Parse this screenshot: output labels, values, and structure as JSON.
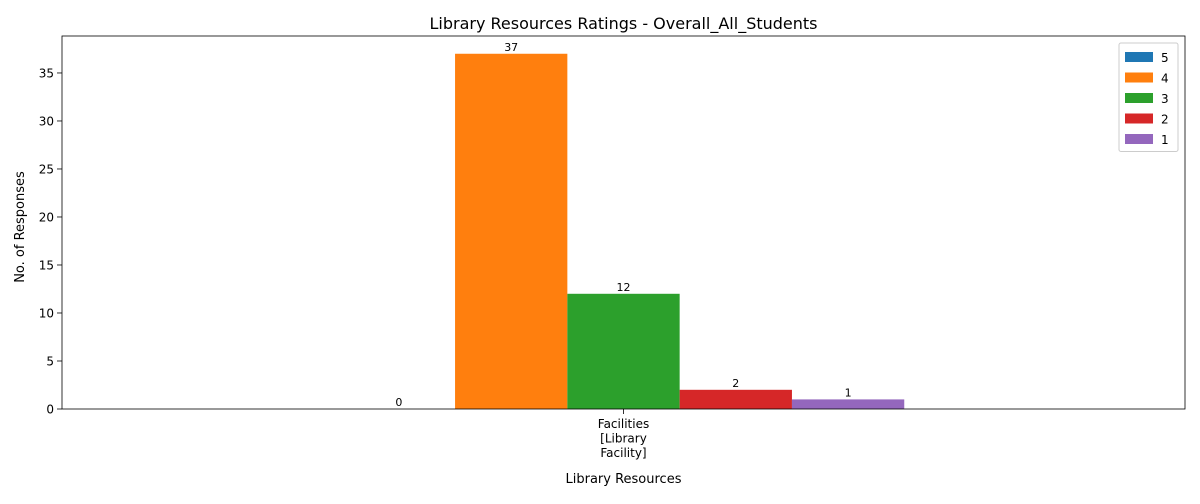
{
  "chart_data": {
    "type": "bar",
    "title": "Library Resources Ratings - Overall_All_Students",
    "xlabel": "Library Resources",
    "ylabel": "No. of Responses",
    "categories": [
      "Facilities\n[Library\nFacility]"
    ],
    "category_lines": [
      "Facilities",
      "[Library",
      "Facility]"
    ],
    "series": [
      {
        "name": "5",
        "values": [
          0
        ],
        "color": "#1f77b4"
      },
      {
        "name": "4",
        "values": [
          37
        ],
        "color": "#ff7f0e"
      },
      {
        "name": "3",
        "values": [
          12
        ],
        "color": "#2ca02c"
      },
      {
        "name": "2",
        "values": [
          2
        ],
        "color": "#d62728"
      },
      {
        "name": "1",
        "values": [
          1
        ],
        "color": "#9467bd"
      }
    ],
    "data_labels": [
      "0",
      "37",
      "12",
      "2",
      "1"
    ],
    "ylim": [
      0,
      38.85
    ],
    "yticks": [
      0,
      5,
      10,
      15,
      20,
      25,
      30,
      35
    ],
    "grid": false,
    "legend_position": "top-right"
  }
}
